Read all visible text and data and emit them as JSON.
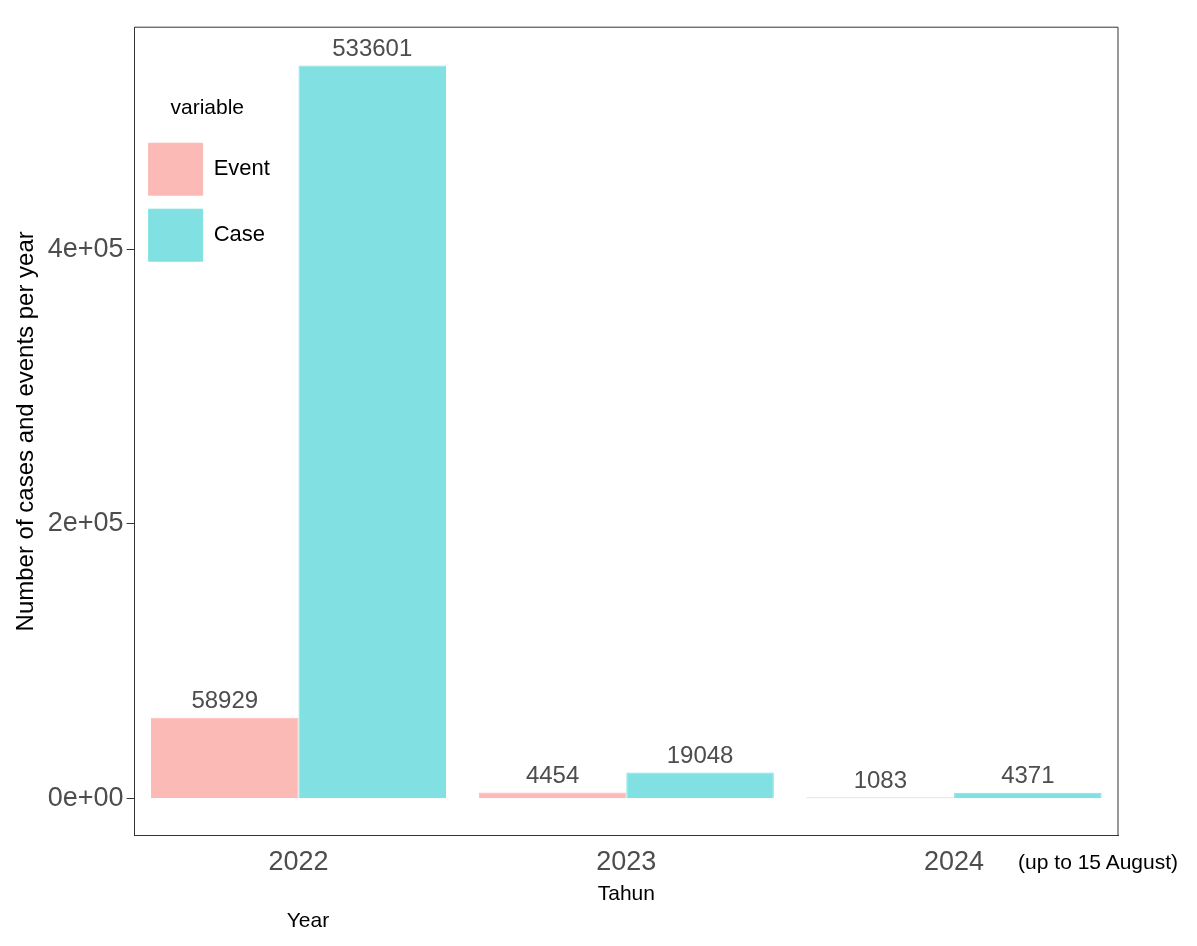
{
  "chart_data": {
    "type": "bar",
    "xlabel": "Tahun",
    "ylabel": "Number of cases and events per year",
    "legend_title": "variable",
    "categories": [
      "2022",
      "2023",
      "2024"
    ],
    "series": [
      {
        "name": "Event",
        "color": "#fbbab6",
        "values": [
          58929,
          4454,
          1083
        ]
      },
      {
        "name": "Case",
        "color": "#80e0e2",
        "values": [
          533601,
          19048,
          4371
        ]
      }
    ],
    "ylim": [
      -26700,
      561500
    ],
    "yticks": [
      {
        "value": 0,
        "label": "0e+00"
      },
      {
        "value": 200000,
        "label": "2e+05"
      },
      {
        "value": 400000,
        "label": "4e+05"
      }
    ],
    "data_labels": true,
    "legend": "top left",
    "grid": false,
    "annotations": [
      "(up to 15 August)",
      "Year"
    ]
  }
}
